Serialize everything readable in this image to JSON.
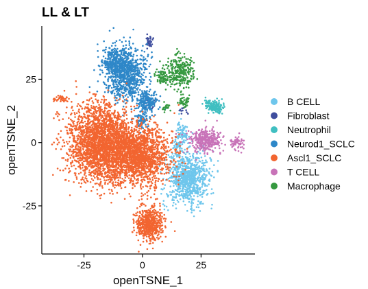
{
  "chart_data": {
    "type": "scatter",
    "title": "LL & LT",
    "xlabel": "openTSNE_1",
    "ylabel": "openTSNE_2",
    "xlim": [
      -43,
      48
    ],
    "ylim": [
      -44,
      46
    ],
    "x_ticks": [
      -25,
      0,
      25
    ],
    "y_ticks": [
      -25,
      0,
      25
    ],
    "x_tick_labels": [
      "-25",
      "0",
      "25"
    ],
    "y_tick_labels": [
      "-25",
      "0",
      "25"
    ],
    "grid": false,
    "legend_position": "right",
    "series": [
      {
        "name": "B CELL",
        "color": "#6EC6EC",
        "clusters": [
          {
            "cx": 19,
            "cy": -14,
            "sx": 6,
            "sy": 7,
            "n": 900
          },
          {
            "cx": 17,
            "cy": 4,
            "sx": 1.8,
            "sy": 3.5,
            "n": 80
          },
          {
            "cx": 15,
            "cy": -2,
            "sx": 1.2,
            "sy": 2,
            "n": 40
          }
        ]
      },
      {
        "name": "Fibroblast",
        "color": "#3F4E9E",
        "clusters": [
          {
            "cx": 3,
            "cy": 40,
            "sx": 1,
            "sy": 1.5,
            "n": 35
          },
          {
            "cx": 3,
            "cy": 15,
            "sx": 2.5,
            "sy": 2,
            "n": 20
          },
          {
            "cx": 18,
            "cy": 13,
            "sx": 1.5,
            "sy": 1,
            "n": 12
          }
        ]
      },
      {
        "name": "Neutrophil",
        "color": "#40BFC1",
        "clusters": [
          {
            "cx": 31,
            "cy": 14,
            "sx": 2.3,
            "sy": 1.6,
            "n": 170
          },
          {
            "cx": 28,
            "cy": 16,
            "sx": 1.2,
            "sy": 1,
            "n": 20
          }
        ]
      },
      {
        "name": "Neurod1_SCLC",
        "color": "#2E87C8",
        "clusters": [
          {
            "cx": -7,
            "cy": 27,
            "sx": 6,
            "sy": 7,
            "n": 900
          },
          {
            "cx": -12,
            "cy": 32,
            "sx": 3,
            "sy": 3.5,
            "n": 200
          },
          {
            "cx": 2,
            "cy": 16,
            "sx": 3,
            "sy": 3,
            "n": 180
          },
          {
            "cx": 0,
            "cy": 9,
            "sx": 1.8,
            "sy": 2.2,
            "n": 80
          }
        ]
      },
      {
        "name": "Ascl1_SCLC",
        "color": "#F26530",
        "clusters": [
          {
            "cx": -18,
            "cy": 0,
            "sx": 9,
            "sy": 10,
            "n": 2300
          },
          {
            "cx": -2,
            "cy": -5,
            "sx": 9,
            "sy": 8,
            "n": 1800
          },
          {
            "cx": 3,
            "cy": -32,
            "sx": 4,
            "sy": 4.5,
            "n": 550
          },
          {
            "cx": -35,
            "cy": 17,
            "sx": 2.5,
            "sy": 1,
            "n": 40
          }
        ]
      },
      {
        "name": "T CELL",
        "color": "#C873B8",
        "clusters": [
          {
            "cx": 27,
            "cy": 1,
            "sx": 4.5,
            "sy": 3,
            "n": 380
          },
          {
            "cx": 40,
            "cy": 0,
            "sx": 2,
            "sy": 1.8,
            "n": 60
          }
        ]
      },
      {
        "name": "Macrophage",
        "color": "#369940",
        "clusters": [
          {
            "cx": 16,
            "cy": 28,
            "sx": 4,
            "sy": 4,
            "n": 300
          },
          {
            "cx": 8,
            "cy": 26,
            "sx": 2,
            "sy": 2,
            "n": 70
          },
          {
            "cx": 18,
            "cy": 16,
            "sx": 1.5,
            "sy": 1.5,
            "n": 40
          },
          {
            "cx": 10,
            "cy": 14,
            "sx": 1.2,
            "sy": 1.2,
            "n": 20
          }
        ]
      }
    ]
  }
}
